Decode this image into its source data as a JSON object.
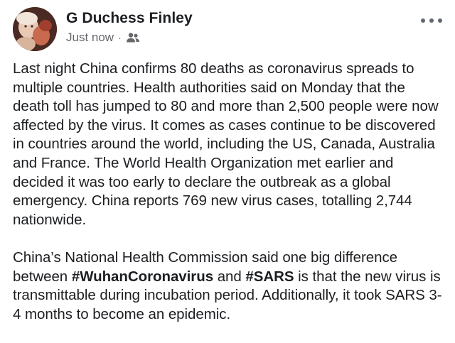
{
  "post": {
    "author": "G Duchess Finley",
    "timestamp": "Just now",
    "separator": "·",
    "audience_icon": "friends-icon",
    "more_icon": "more-options-icon",
    "paragraph1": "Last night China confirms 80 deaths as coronavirus spreads to multiple countries.  Health authorities said on Monday that the death toll has jumped to 80 and more than 2,500 people were now affected by the virus. It comes as cases continue to be discovered in countries around the world, including the US, Canada, Australia and France. The World Health Organization met earlier and decided it was too early to declare the outbreak as a global emergency. China reports 769 new virus cases, totalling 2,744 nationwide.",
    "paragraph2": {
      "before_tag1": "China’s National Health Commission said one big difference between ",
      "hashtag1": "#WuhanCoronavirus",
      "between_tags": " and ",
      "hashtag2": "#SARS",
      "after_tag2": " is that the new virus is transmittable during incubation period. Additionally, it took SARS 3-4 months to become an epidemic."
    }
  },
  "colors": {
    "text": "#1c1e21",
    "secondary": "#65676b",
    "icon": "#606770",
    "background": "#ffffff"
  }
}
